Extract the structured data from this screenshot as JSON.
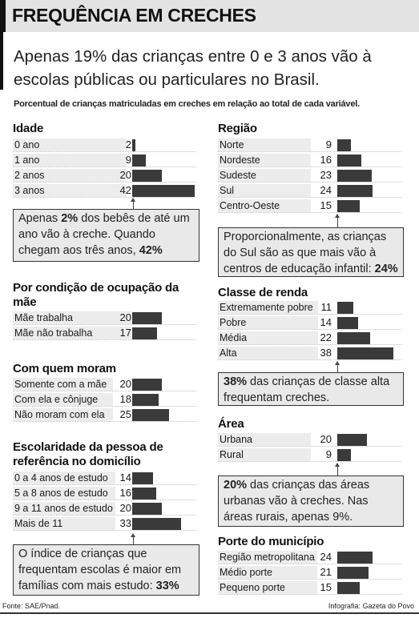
{
  "title": "FREQUÊNCIA EM CRECHES",
  "subtitle": "Apenas 19% das crianças entre 0 e 3 anos vão à escolas públicas ou particulares no Brasil.",
  "note": "Porcentual de crianças matriculadas em creches em relação ao total de cada variável.",
  "footer": {
    "source": "Fonte: SAE/Pnad.",
    "credit": "Infografia: Gazeta do Povo"
  },
  "colors": {
    "bar": "#3a3a3a",
    "label_bg": "#ececec",
    "callout_bg": "#e9e9e9"
  },
  "chart_data": [
    {
      "type": "bar",
      "title": "Idade",
      "categories": [
        "0 ano",
        "1 ano",
        "2 anos",
        "3 anos"
      ],
      "values": [
        2,
        9,
        20,
        42
      ]
    },
    {
      "type": "bar",
      "title": "Por condição de ocupação da mãe",
      "categories": [
        "Mãe trabalha",
        "Mãe não trabalha"
      ],
      "values": [
        20,
        17
      ]
    },
    {
      "type": "bar",
      "title": "Com quem moram",
      "categories": [
        "Somente com a mãe",
        "Com ela e cônjuge",
        "Não moram com ela"
      ],
      "values": [
        20,
        18,
        25
      ]
    },
    {
      "type": "bar",
      "title": "Escolaridade da pessoa de referência no domicílio",
      "categories": [
        "0 a 4 anos de estudo",
        "5 a 8 anos de estudo",
        "9 a 11 anos de estudo",
        "Mais de 11"
      ],
      "values": [
        14,
        16,
        20,
        33
      ]
    },
    {
      "type": "bar",
      "title": "Região",
      "categories": [
        "Norte",
        "Nordeste",
        "Sudeste",
        "Sul",
        "Centro-Oeste"
      ],
      "values": [
        9,
        16,
        23,
        24,
        15
      ]
    },
    {
      "type": "bar",
      "title": "Classe de renda",
      "categories": [
        "Extremamente pobre",
        "Pobre",
        "Média",
        "Alta"
      ],
      "values": [
        11,
        14,
        22,
        38
      ]
    },
    {
      "type": "bar",
      "title": "Área",
      "categories": [
        "Urbana",
        "Rural"
      ],
      "values": [
        20,
        9
      ]
    },
    {
      "type": "bar",
      "title": "Porte do município",
      "categories": [
        "Região metropolitana",
        "Médio porte",
        "Pequeno porte"
      ],
      "values": [
        24,
        21,
        15
      ]
    }
  ],
  "callouts": [
    {
      "pre": "Apenas ",
      "strong": "2%",
      "post": " dos bebês de até um ano vão à creche. Quando chegam aos três anos, ",
      "strong2": "42%",
      "post2": ""
    },
    {
      "pre": "O índice de crianças que frequentam escolas é maior em famílias com mais estudo: ",
      "strong": "33%",
      "post": "",
      "strong2": "",
      "post2": ""
    },
    {
      "pre": "Proporcionalmente, as crianças do Sul são as que mais vão à centros de educação infantil: ",
      "strong": "24%",
      "post": "",
      "strong2": "",
      "post2": ""
    },
    {
      "pre": "",
      "strong": "38%",
      "post": " das crianças de classe alta frequentam creches.",
      "strong2": "",
      "post2": ""
    },
    {
      "pre": "",
      "strong": "20%",
      "post": " das crianças das áreas urbanas vão à creches. Nas áreas rurais, apenas 9%.",
      "strong2": "",
      "post2": ""
    }
  ]
}
